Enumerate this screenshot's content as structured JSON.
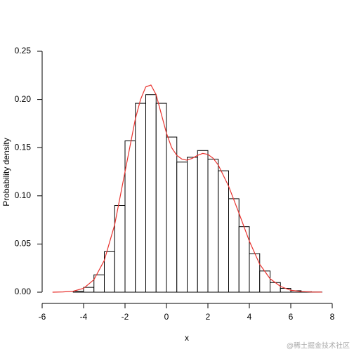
{
  "chart_data": {
    "type": "histogram",
    "xlabel": "x",
    "ylabel": "Probability density",
    "bins": [
      -5.5,
      -5,
      -4.5,
      -4,
      -3.5,
      -3,
      -2.5,
      -2,
      -1.5,
      -1,
      -0.5,
      0,
      0.5,
      1,
      1.5,
      2,
      2.5,
      3,
      3.5,
      4,
      4.5,
      5,
      5.5,
      6,
      6.5,
      7,
      7.5
    ],
    "values": [
      0,
      0,
      0.001,
      0.005,
      0.018,
      0.042,
      0.09,
      0.157,
      0.196,
      0.205,
      0.196,
      0.161,
      0.135,
      0.14,
      0.147,
      0.138,
      0.126,
      0.097,
      0.068,
      0.04,
      0.022,
      0.01,
      0.004,
      0.0015,
      0.0005,
      0.0002
    ],
    "fill": "#ffffff",
    "edgecolor": "#000000",
    "density": {
      "color": "#e8332f",
      "x": [
        -5.5,
        -5,
        -4.5,
        -4,
        -3.5,
        -3,
        -2.5,
        -2,
        -1.5,
        -1.25,
        -1,
        -0.75,
        -0.5,
        -0.25,
        0,
        0.25,
        0.5,
        0.75,
        1,
        1.25,
        1.5,
        1.75,
        2,
        2.25,
        2.5,
        3,
        3.5,
        4,
        4.5,
        5,
        5.5,
        6,
        6.5,
        7,
        7.5
      ],
      "values": [
        0,
        0.0003,
        0.001,
        0.004,
        0.013,
        0.033,
        0.07,
        0.125,
        0.18,
        0.2,
        0.213,
        0.215,
        0.205,
        0.185,
        0.165,
        0.15,
        0.142,
        0.138,
        0.137,
        0.139,
        0.142,
        0.144,
        0.143,
        0.139,
        0.132,
        0.11,
        0.082,
        0.053,
        0.029,
        0.014,
        0.006,
        0.002,
        0.0007,
        0.0002,
        0.0001
      ]
    },
    "xlim": [
      -6,
      8
    ],
    "xticks": [
      -6,
      -4,
      -2,
      0,
      2,
      4,
      6,
      8
    ],
    "ylim": [
      0,
      0.25
    ],
    "yticks": [
      {
        "value": 0,
        "label": "0.00"
      },
      {
        "value": 0.05,
        "label": "0.05"
      },
      {
        "value": 0.1,
        "label": "0.10"
      },
      {
        "value": 0.15,
        "label": "0.15"
      },
      {
        "value": 0.2,
        "label": "0.20"
      },
      {
        "value": 0.25,
        "label": "0.25"
      }
    ],
    "watermark": "@稀土掘金技术社区"
  }
}
